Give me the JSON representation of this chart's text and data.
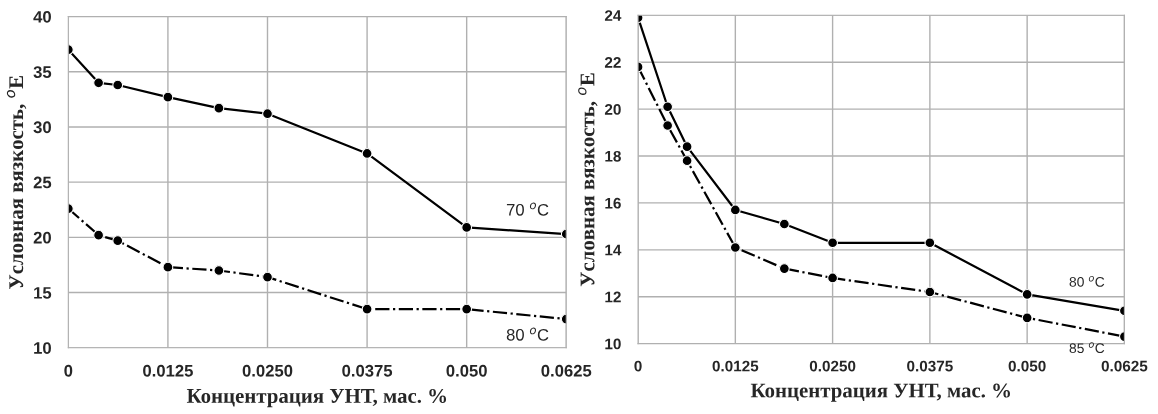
{
  "chart_data": [
    {
      "type": "line",
      "xlabel": "Концентрация УНТ, мас. %",
      "ylabel": "Условная вязкость, $^{o}$E",
      "x": [
        0,
        0.0038,
        0.0062,
        0.0125,
        0.0189,
        0.025,
        0.0375,
        0.05,
        0.0625
      ],
      "xlim": [
        0,
        0.0625
      ],
      "xticks": [
        0,
        {
          "value": 0.0125,
          "label": "0.0125"
        },
        {
          "value": 0.025,
          "label": "0.0250"
        },
        {
          "value": 0.0375,
          "label": "0.0375"
        },
        {
          "value": 0.05,
          "label": "0.050"
        },
        {
          "value": 0.0625,
          "label": "0.0625"
        }
      ],
      "ylim": [
        10,
        40
      ],
      "yticks": [
        10,
        15,
        20,
        25,
        30,
        35,
        40
      ],
      "grid": true,
      "marker": "circle",
      "series": [
        {
          "name": "70 $^{o}$C",
          "color": "#000000",
          "line_style": "solid",
          "values": [
            37,
            34,
            33.8,
            32.7,
            31.7,
            31.2,
            27.6,
            20.9,
            20.3
          ]
        },
        {
          "name": "80 $^{o}$C",
          "color": "#000000",
          "line_style": "dashdot",
          "values": [
            22.6,
            20.2,
            19.7,
            17.3,
            17.0,
            16.4,
            13.5,
            13.5,
            12.6
          ]
        }
      ]
    },
    {
      "type": "line",
      "xlabel": "Концентрация УНТ, мас. %",
      "ylabel": "Условная вязкость, $^{o}$E",
      "x": [
        0,
        0.0038,
        0.0063,
        0.0125,
        0.0188,
        0.025,
        0.0375,
        0.05,
        0.0625
      ],
      "xlim": [
        0,
        0.0625
      ],
      "xticks": [
        0,
        {
          "value": 0.0125,
          "label": "0.0125"
        },
        {
          "value": 0.025,
          "label": "0.0250"
        },
        {
          "value": 0.0375,
          "label": "0.0375"
        },
        {
          "value": 0.05,
          "label": "0.050"
        },
        {
          "value": 0.0625,
          "label": "0.0625"
        }
      ],
      "ylim": [
        10,
        24
      ],
      "yticks": [
        10,
        12,
        14,
        16,
        18,
        20,
        22,
        24
      ],
      "grid": true,
      "marker": "circle",
      "series": [
        {
          "name": "80 $^{o}$C",
          "color": "#000000",
          "line_style": "solid",
          "values": [
            23.9,
            20.1,
            18.4,
            15.7,
            15.1,
            14.3,
            14.3,
            12.1,
            11.4
          ]
        },
        {
          "name": "85 $^{o}$C",
          "color": "#000000",
          "line_style": "dashdot",
          "values": [
            21.8,
            19.3,
            17.8,
            14.1,
            13.2,
            12.8,
            12.2,
            11.1,
            10.3
          ]
        }
      ]
    }
  ]
}
